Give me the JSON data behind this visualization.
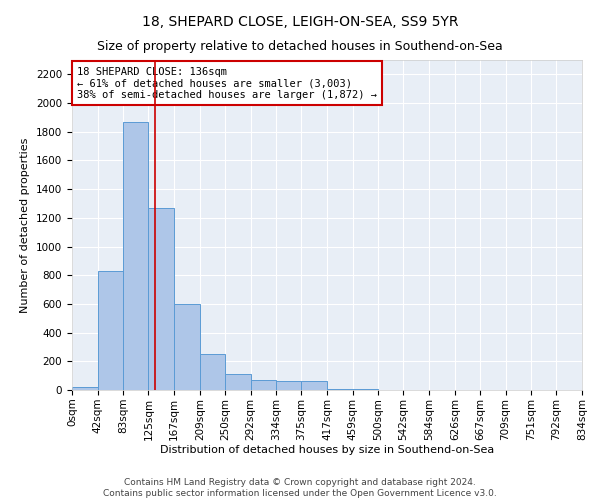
{
  "title": "18, SHEPARD CLOSE, LEIGH-ON-SEA, SS9 5YR",
  "subtitle": "Size of property relative to detached houses in Southend-on-Sea",
  "xlabel": "Distribution of detached houses by size in Southend-on-Sea",
  "ylabel": "Number of detached properties",
  "footnote1": "Contains HM Land Registry data © Crown copyright and database right 2024.",
  "footnote2": "Contains public sector information licensed under the Open Government Licence v3.0.",
  "annotation_title": "18 SHEPARD CLOSE: 136sqm",
  "annotation_line1": "← 61% of detached houses are smaller (3,003)",
  "annotation_line2": "38% of semi-detached houses are larger (1,872) →",
  "bar_edges": [
    0,
    42,
    83,
    125,
    167,
    209,
    250,
    292,
    334,
    375,
    417,
    459,
    500,
    542,
    584,
    626,
    667,
    709,
    751,
    792,
    834
  ],
  "bar_heights": [
    20,
    830,
    1870,
    1270,
    600,
    250,
    110,
    70,
    65,
    60,
    10,
    5,
    0,
    0,
    0,
    0,
    0,
    0,
    0,
    0
  ],
  "bar_color": "#aec6e8",
  "bar_edge_color": "#5b9bd5",
  "vline_color": "#cc0000",
  "vline_x": 136,
  "annotation_box_color": "#cc0000",
  "annotation_bg": "#ffffff",
  "plot_bg_color": "#e8eef6",
  "fig_bg_color": "#ffffff",
  "ylim": [
    0,
    2300
  ],
  "yticks": [
    0,
    200,
    400,
    600,
    800,
    1000,
    1200,
    1400,
    1600,
    1800,
    2000,
    2200
  ],
  "title_fontsize": 10,
  "subtitle_fontsize": 9,
  "xlabel_fontsize": 8,
  "ylabel_fontsize": 8,
  "tick_fontsize": 7.5,
  "annotation_fontsize": 7.5,
  "footnote_fontsize": 6.5
}
